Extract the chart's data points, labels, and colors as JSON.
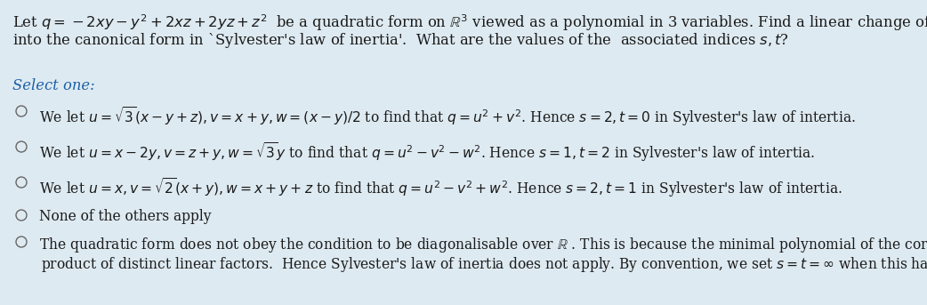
{
  "background_color": "#deeaf1",
  "text_color": "#1a1a1a",
  "select_color": "#1a5fa8",
  "figsize": [
    10.42,
    3.43
  ],
  "dpi": 100,
  "title_line1": "Let $q = -2xy - y^2 + 2xz + 2yz + z^2$  be a quadratic form on $\\mathbb{R}^3$ viewed as a polynomial in 3 variables. Find a linear change of variables to $u, v, w$ that puts $q$",
  "title_line2": "into the canonical form in `Sylvester's law of inertia'.  What are the values of the  associated indices $s, t$?",
  "select_label": "Select one:",
  "options": [
    "We let $u = \\sqrt{3}(x - y + z), v = x + y, w = (x - y)/2$ to find that $q = u^2 + v^2$. Hence $s = 2, t = 0$ in Sylvester's law of intertia.",
    "We let $u = x - 2y, v = z + y, w = \\sqrt{3}y$ to find that $q = u^2 - v^2 - w^2$. Hence $s = 1, t = 2$ in Sylvester's law of intertia.",
    "We let $u = x, v = \\sqrt{2}(x + y), w = x + y + z$ to find that $q = u^2 - v^2 + w^2$. Hence $s = 2, t = 1$ in Sylvester's law of intertia.",
    "None of the others apply",
    "The quadratic form does not obey the condition to be diagonalisable over $\\mathbb{R}$ . This is because the minimal polynomial of the corresponding matrix is not a"
  ],
  "option5_line2": "product of distinct linear factors.  Hence Sylvester's law of inertia does not apply. By convention, we set $s = t = \\infty$ when this happens.",
  "title_fontsize": 11.8,
  "option_fontsize": 11.2,
  "select_fontsize": 11.8
}
